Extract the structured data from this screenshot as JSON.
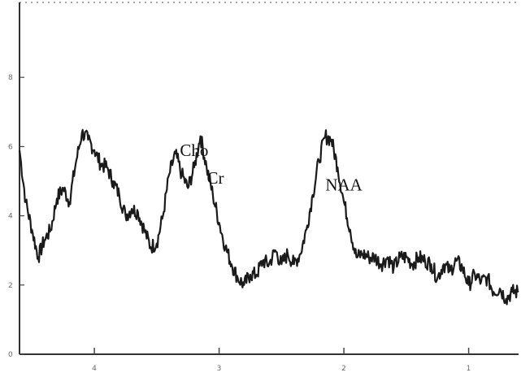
{
  "chart_data": {
    "type": "line",
    "title": "",
    "xlabel": "",
    "ylabel": "",
    "xlim": [
      4.6,
      0.6
    ],
    "ylim": [
      0,
      10
    ],
    "x_reversed": true,
    "x_ticks": [
      {
        "value": 4.0,
        "label": "4"
      },
      {
        "value": 3.0,
        "label": "3"
      },
      {
        "value": 2.0,
        "label": "2"
      },
      {
        "value": 1.0,
        "label": "1"
      }
    ],
    "y_ticks": [
      {
        "value": 0,
        "label": "0"
      },
      {
        "value": 2,
        "label": "2"
      },
      {
        "value": 4,
        "label": "4"
      },
      {
        "value": 6,
        "label": "6"
      },
      {
        "value": 8,
        "label": "8"
      }
    ],
    "grid": false,
    "series": [
      {
        "x": [
          4.6,
          4.55,
          4.5,
          4.45,
          4.4,
          4.35,
          4.3,
          4.25,
          4.2,
          4.15,
          4.1,
          4.05,
          4.0,
          3.95,
          3.9,
          3.85,
          3.8,
          3.75,
          3.7,
          3.65,
          3.6,
          3.55,
          3.5,
          3.45,
          3.4,
          3.35,
          3.3,
          3.25,
          3.2,
          3.15,
          3.1,
          3.05,
          3.0,
          2.95,
          2.9,
          2.85,
          2.8,
          2.75,
          2.7,
          2.65,
          2.6,
          2.55,
          2.5,
          2.45,
          2.4,
          2.35,
          2.3,
          2.25,
          2.2,
          2.15,
          2.1,
          2.05,
          2.0,
          1.95,
          1.9,
          1.85,
          1.8,
          1.75,
          1.7,
          1.65,
          1.6,
          1.55,
          1.5,
          1.45,
          1.4,
          1.35,
          1.3,
          1.25,
          1.2,
          1.15,
          1.1,
          1.05,
          1.0,
          0.95,
          0.9,
          0.85,
          0.8,
          0.75,
          0.7,
          0.65,
          0.6
        ],
        "y": [
          5.9,
          4.4,
          3.6,
          2.8,
          3.3,
          3.6,
          4.5,
          4.8,
          4.4,
          5.5,
          6.4,
          6.2,
          5.9,
          5.5,
          5.4,
          5.0,
          4.6,
          4.0,
          4.2,
          4.1,
          3.6,
          3.1,
          3.2,
          4.0,
          5.2,
          5.8,
          5.2,
          4.8,
          5.4,
          6.3,
          5.4,
          4.6,
          3.8,
          3.1,
          2.6,
          2.2,
          2.0,
          2.3,
          2.3,
          2.7,
          2.6,
          3.0,
          2.6,
          2.9,
          2.6,
          2.9,
          3.6,
          4.6,
          5.6,
          6.3,
          6.2,
          5.4,
          4.4,
          3.6,
          2.8,
          2.9,
          2.8,
          2.8,
          2.6,
          2.8,
          2.5,
          2.8,
          2.8,
          2.6,
          2.8,
          2.7,
          2.6,
          2.2,
          2.6,
          2.4,
          2.7,
          2.5,
          2.0,
          2.3,
          2.1,
          2.2,
          1.8,
          1.9,
          1.6,
          1.8,
          1.8
        ]
      }
    ],
    "annotations": [
      {
        "text": "Cho",
        "x": 3.2
      },
      {
        "text": "Cr",
        "x": 3.03
      },
      {
        "text": "NAA",
        "x": 2.0
      }
    ]
  }
}
